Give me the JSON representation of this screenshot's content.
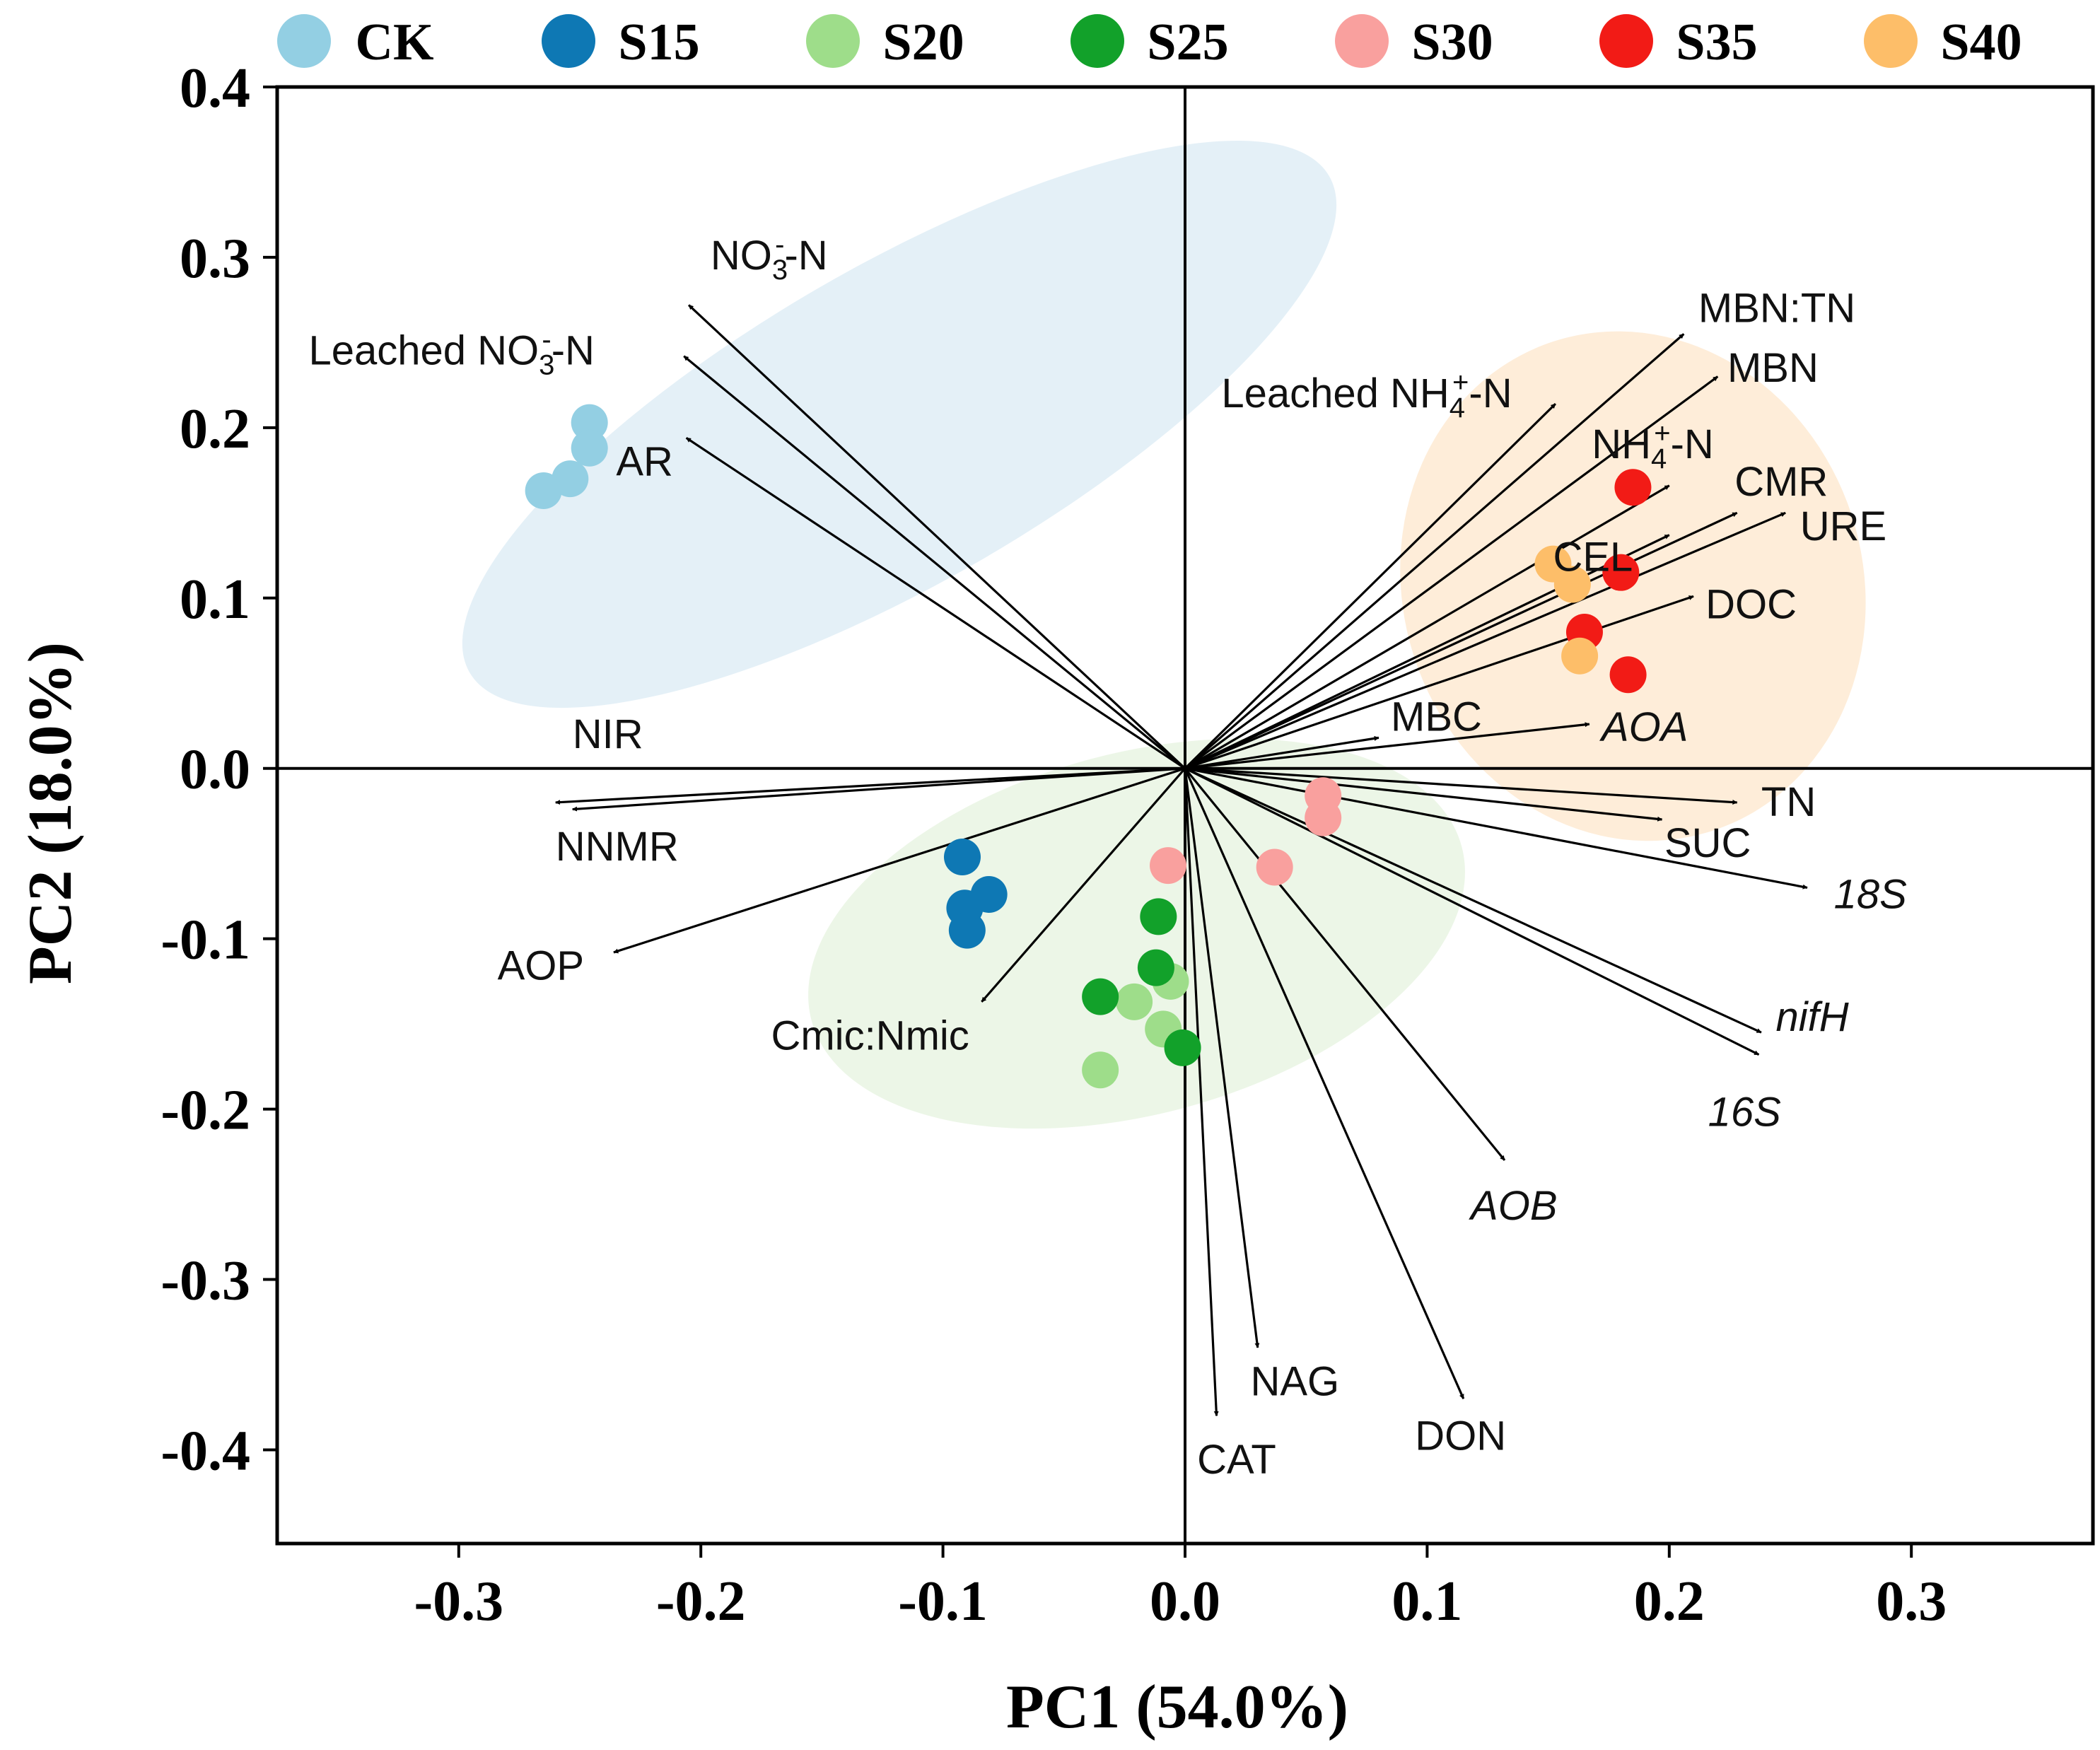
{
  "chart_data": {
    "type": "scatter",
    "subtype": "pca-biplot",
    "xlabel": "PC1 (54.0%)",
    "ylabel": "PC2 (18.0%)",
    "xlim": [
      -0.375,
      0.375
    ],
    "ylim": [
      -0.455,
      0.4
    ],
    "xticks": [
      -0.3,
      -0.2,
      -0.1,
      0.0,
      0.1,
      0.2,
      0.3
    ],
    "yticks": [
      0.4,
      0.3,
      0.2,
      0.1,
      0.0,
      -0.1,
      -0.2,
      -0.3,
      -0.4
    ],
    "xtick_labels": [
      "-0.3",
      "-0.2",
      "-0.1",
      "0.0",
      "0.1",
      "0.2",
      "0.3"
    ],
    "ytick_labels": [
      "0.4",
      "0.3",
      "0.2",
      "0.1",
      "0.0",
      "-0.1",
      "-0.2",
      "-0.3",
      "-0.4"
    ],
    "legend_position": "top",
    "groups": [
      {
        "name": "CK",
        "color": "#93CFE3",
        "points": [
          [
            -0.246,
            0.203
          ],
          [
            -0.246,
            0.188
          ],
          [
            -0.254,
            0.17
          ],
          [
            -0.265,
            0.163
          ]
        ]
      },
      {
        "name": "S15",
        "color": "#0E78B4",
        "points": [
          [
            -0.092,
            -0.052
          ],
          [
            -0.081,
            -0.074
          ],
          [
            -0.091,
            -0.082
          ],
          [
            -0.09,
            -0.095
          ]
        ]
      },
      {
        "name": "S20",
        "color": "#9EDD8A",
        "points": [
          [
            -0.021,
            -0.137
          ],
          [
            -0.006,
            -0.125
          ],
          [
            -0.009,
            -0.153
          ],
          [
            -0.035,
            -0.177
          ]
        ]
      },
      {
        "name": "S25",
        "color": "#12A12A",
        "points": [
          [
            -0.011,
            -0.087
          ],
          [
            -0.012,
            -0.117
          ],
          [
            -0.035,
            -0.134
          ],
          [
            -0.001,
            -0.164
          ]
        ]
      },
      {
        "name": "S30",
        "color": "#F9A09E",
        "points": [
          [
            -0.007,
            -0.057
          ],
          [
            0.057,
            -0.016
          ],
          [
            0.057,
            -0.029
          ],
          [
            0.037,
            -0.058
          ]
        ]
      },
      {
        "name": "S35",
        "color": "#F21B16",
        "points": [
          [
            0.185,
            0.165
          ],
          [
            0.18,
            0.115
          ],
          [
            0.165,
            0.08
          ],
          [
            0.183,
            0.055
          ]
        ]
      },
      {
        "name": "S40",
        "color": "#FDBE69",
        "points": [
          [
            0.152,
            0.12
          ],
          [
            0.16,
            0.108
          ],
          [
            0.163,
            0.066
          ]
        ]
      }
    ],
    "ellipses": [
      {
        "name": "CK-ellipse",
        "color": "#DBEBF4",
        "cx": -0.118,
        "cy": 0.202,
        "rx": 0.205,
        "ry": 0.093,
        "rotation_deg": -30
      },
      {
        "name": "S35-S40-ellipse",
        "color": "#FDE7CC",
        "cx": 0.185,
        "cy": 0.107,
        "rx": 0.095,
        "ry": 0.151,
        "rotation_deg": -18
      },
      {
        "name": "low-dose-ellipse",
        "color": "#E6F3DF",
        "cx": -0.02,
        "cy": -0.097,
        "rx": 0.139,
        "ry": 0.106,
        "rotation_deg": -15
      }
    ],
    "loadings": [
      {
        "name": "NO3-N",
        "label": "NO3-N",
        "x": -0.205,
        "y": 0.272,
        "italic": false,
        "label_pos": [
          -0.196,
          0.293
        ],
        "sup": "-",
        "sub": "3"
      },
      {
        "name": "Leached NO3-N",
        "label": "Leached NO3-N",
        "x": -0.207,
        "y": 0.242,
        "italic": false,
        "label_pos": [
          -0.362,
          0.237
        ],
        "sup": "-",
        "sub": "3"
      },
      {
        "name": "AR",
        "label": "AR",
        "x": -0.206,
        "y": 0.194,
        "italic": false,
        "label_pos": [
          -0.235,
          0.172
        ]
      },
      {
        "name": "NIR",
        "label": "NIR",
        "x": -0.26,
        "y": -0.02,
        "italic": false,
        "label_pos": [
          -0.253,
          0.012
        ]
      },
      {
        "name": "NNMR",
        "label": "NNMR",
        "x": -0.253,
        "y": -0.024,
        "italic": false,
        "label_pos": [
          -0.26,
          -0.054
        ]
      },
      {
        "name": "AOP",
        "label": "AOP",
        "x": -0.236,
        "y": -0.108,
        "italic": false,
        "label_pos": [
          -0.284,
          -0.124
        ]
      },
      {
        "name": "Cmic:Nmic",
        "label": "Cmic:Nmic",
        "x": -0.084,
        "y": -0.137,
        "italic": false,
        "label_pos": [
          -0.171,
          -0.165
        ]
      },
      {
        "name": "MBN:TN",
        "label": "MBN:TN",
        "x": 0.206,
        "y": 0.255,
        "italic": false,
        "label_pos": [
          0.212,
          0.262
        ]
      },
      {
        "name": "MBN",
        "label": "MBN",
        "x": 0.22,
        "y": 0.23,
        "italic": false,
        "label_pos": [
          0.224,
          0.227
        ]
      },
      {
        "name": "Leached NH4-N",
        "label": "Leached NH4-N",
        "x": 0.153,
        "y": 0.214,
        "italic": false,
        "label_pos": [
          0.015,
          0.212
        ],
        "sup": "+",
        "sub": "4"
      },
      {
        "name": "NH4-N",
        "label": "NH4-N",
        "x": 0.2,
        "y": 0.166,
        "italic": false,
        "label_pos": [
          0.168,
          0.182
        ],
        "sup": "+",
        "sub": "4"
      },
      {
        "name": "CMR",
        "label": "CMR",
        "x": 0.228,
        "y": 0.15,
        "italic": false,
        "label_pos": [
          0.227,
          0.16
        ]
      },
      {
        "name": "URE",
        "label": "URE",
        "x": 0.248,
        "y": 0.15,
        "italic": false,
        "label_pos": [
          0.254,
          0.134
        ]
      },
      {
        "name": "CEL",
        "label": "CEL",
        "x": 0.2,
        "y": 0.137,
        "italic": false,
        "label_pos": [
          0.152,
          0.116
        ]
      },
      {
        "name": "DOC",
        "label": "DOC",
        "x": 0.21,
        "y": 0.101,
        "italic": false,
        "label_pos": [
          0.215,
          0.088
        ]
      },
      {
        "name": "MBC",
        "label": "MBC",
        "x": 0.08,
        "y": 0.018,
        "italic": false,
        "label_pos": [
          0.085,
          0.022
        ]
      },
      {
        "name": "AOA",
        "label": "AOA",
        "x": 0.167,
        "y": 0.026,
        "italic": true,
        "label_pos": [
          0.172,
          0.016
        ]
      },
      {
        "name": "TN",
        "label": "TN",
        "x": 0.228,
        "y": -0.02,
        "italic": false,
        "label_pos": [
          0.238,
          -0.028
        ]
      },
      {
        "name": "SUC",
        "label": "SUC",
        "x": 0.197,
        "y": -0.03,
        "italic": false,
        "label_pos": [
          0.198,
          -0.052
        ]
      },
      {
        "name": "18S",
        "label": "18S",
        "x": 0.257,
        "y": -0.07,
        "italic": true,
        "label_pos": [
          0.268,
          -0.082
        ]
      },
      {
        "name": "nifH",
        "label": "nifH",
        "x": 0.238,
        "y": -0.155,
        "italic": true,
        "label_pos": [
          0.244,
          -0.154
        ]
      },
      {
        "name": "16S",
        "label": "16S",
        "x": 0.237,
        "y": -0.168,
        "italic": true,
        "label_pos": [
          0.216,
          -0.21
        ]
      },
      {
        "name": "AOB",
        "label": "AOB",
        "x": 0.132,
        "y": -0.23,
        "italic": true,
        "label_pos": [
          0.118,
          -0.265
        ]
      },
      {
        "name": "NAG",
        "label": "NAG",
        "x": 0.03,
        "y": -0.34,
        "italic": false,
        "label_pos": [
          0.027,
          -0.368
        ]
      },
      {
        "name": "CAT",
        "label": "CAT",
        "x": 0.013,
        "y": -0.38,
        "italic": false,
        "label_pos": [
          0.005,
          -0.414
        ]
      },
      {
        "name": "DON",
        "label": "DON",
        "x": 0.115,
        "y": -0.37,
        "italic": false,
        "label_pos": [
          0.095,
          -0.4
        ]
      }
    ]
  }
}
